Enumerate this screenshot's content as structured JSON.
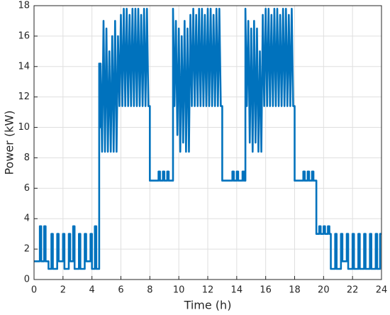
{
  "chart_data": {
    "type": "line",
    "xlabel": "Time (h)",
    "ylabel": "Power (kW)",
    "xlim": [
      0,
      24
    ],
    "ylim": [
      0,
      18
    ],
    "xticks": [
      0,
      2,
      4,
      6,
      8,
      10,
      12,
      14,
      16,
      18,
      20,
      22,
      24
    ],
    "yticks": [
      0,
      2,
      4,
      6,
      8,
      10,
      12,
      14,
      16,
      18
    ],
    "grid": true,
    "series": [
      {
        "color": "#0072bd",
        "x": [
          0,
          0.4,
          0.4,
          0.5,
          0.5,
          0.7,
          0.7,
          0.8,
          0.8,
          1.0,
          1.0,
          1.2,
          1.2,
          1.3,
          1.3,
          1.6,
          1.6,
          1.7,
          1.7,
          2.0,
          2.0,
          2.1,
          2.1,
          2.4,
          2.4,
          2.5,
          2.5,
          2.7,
          2.7,
          2.8,
          2.8,
          3.1,
          3.1,
          3.2,
          3.2,
          3.5,
          3.5,
          3.6,
          3.6,
          3.9,
          3.9,
          4.0,
          4.0,
          4.2,
          4.2,
          4.3,
          4.3,
          4.5,
          4.5,
          4.55,
          4.6,
          4.7,
          4.8,
          4.9,
          5.0,
          5.1,
          5.2,
          5.3,
          5.4,
          5.5,
          5.6,
          5.7,
          5.8,
          5.9,
          6.0,
          6.1,
          6.2,
          6.3,
          6.4,
          6.5,
          6.6,
          6.7,
          6.8,
          6.9,
          7.0,
          7.1,
          7.2,
          7.3,
          7.4,
          7.5,
          7.6,
          7.7,
          7.8,
          7.9,
          8.0,
          8.0,
          8.6,
          8.6,
          8.7,
          8.7,
          8.9,
          8.9,
          9.0,
          9.0,
          9.2,
          9.2,
          9.3,
          9.3,
          9.6,
          9.6,
          9.7,
          9.8,
          9.9,
          10.0,
          10.1,
          10.2,
          10.3,
          10.4,
          10.5,
          10.6,
          10.7,
          10.8,
          10.9,
          11.0,
          11.1,
          11.2,
          11.3,
          11.4,
          11.5,
          11.6,
          11.7,
          11.8,
          11.9,
          12.0,
          12.1,
          12.2,
          12.3,
          12.4,
          12.5,
          12.6,
          12.7,
          12.8,
          12.9,
          13.0,
          13.0,
          13.7,
          13.7,
          13.8,
          13.8,
          14.0,
          14.0,
          14.1,
          14.1,
          14.4,
          14.4,
          14.5,
          14.5,
          14.6,
          14.6,
          14.7,
          14.8,
          14.9,
          15.0,
          15.1,
          15.2,
          15.3,
          15.4,
          15.5,
          15.6,
          15.7,
          15.8,
          15.9,
          16.0,
          16.1,
          16.2,
          16.3,
          16.4,
          16.5,
          16.6,
          16.7,
          16.8,
          16.9,
          17.0,
          17.1,
          17.2,
          17.3,
          17.4,
          17.5,
          17.6,
          17.7,
          17.8,
          17.9,
          18.0,
          18.0,
          18.6,
          18.6,
          18.7,
          18.7,
          18.9,
          18.9,
          19.0,
          19.0,
          19.2,
          19.2,
          19.3,
          19.3,
          19.5,
          19.5,
          19.7,
          19.7,
          19.8,
          19.8,
          20.0,
          20.0,
          20.1,
          20.1,
          20.3,
          20.3,
          20.4,
          20.4,
          20.5,
          20.5,
          20.8,
          20.8,
          20.9,
          20.9,
          21.2,
          21.2,
          21.3,
          21.3,
          21.6,
          21.6,
          21.7,
          21.7,
          22.0,
          22.0,
          22.1,
          22.1,
          22.4,
          22.4,
          22.5,
          22.5,
          22.8,
          22.8,
          22.9,
          22.9,
          23.2,
          23.2,
          23.3,
          23.3,
          23.6,
          23.6,
          23.7,
          23.7,
          23.9,
          23.9,
          24
        ],
        "values": [
          1.2,
          1.2,
          3.5,
          3.5,
          1.2,
          1.2,
          3.5,
          3.5,
          1.2,
          1.2,
          0.7,
          0.7,
          3.0,
          3.0,
          0.7,
          0.7,
          3.0,
          3.0,
          1.2,
          1.2,
          3.0,
          3.0,
          0.7,
          0.7,
          3.0,
          3.0,
          1.2,
          1.2,
          3.5,
          3.5,
          0.7,
          0.7,
          3.0,
          3.0,
          0.7,
          0.7,
          3.0,
          3.0,
          1.2,
          1.2,
          3.0,
          3.0,
          0.7,
          0.7,
          3.5,
          3.5,
          0.7,
          0.7,
          14.2,
          10,
          14.2,
          8.4,
          17,
          8.4,
          16.5,
          8.4,
          15,
          8.4,
          16,
          8.4,
          17,
          8.4,
          16,
          11.4,
          17.4,
          11.4,
          17.8,
          11.4,
          17.8,
          11.4,
          17.4,
          11.4,
          17.8,
          11.4,
          17.8,
          11.4,
          17.8,
          11.4,
          17.4,
          11.4,
          17.8,
          11.4,
          17.8,
          11.4,
          11.4,
          6.5,
          6.5,
          7.1,
          7.1,
          6.5,
          6.5,
          7.1,
          7.1,
          6.5,
          6.5,
          7.1,
          7.1,
          6.5,
          6.5,
          17.8,
          11.4,
          17,
          9.5,
          16.5,
          8.4,
          16,
          9,
          17,
          8.4,
          16.5,
          8.4,
          17.4,
          11.4,
          17.8,
          11.4,
          17.4,
          11.4,
          17.8,
          11.4,
          17.8,
          11.4,
          17.4,
          11.4,
          17.8,
          11.4,
          17.8,
          11.4,
          17.4,
          11.4,
          17.8,
          11.4,
          17.8,
          11.4,
          11.4,
          6.5,
          6.5,
          7.1,
          7.1,
          6.5,
          6.5,
          7.1,
          7.1,
          6.5,
          6.5,
          7.1,
          7.1,
          6.5,
          6.5,
          17.8,
          11.4,
          17,
          9,
          16.5,
          8.4,
          17,
          9,
          16.5,
          8.4,
          15,
          8.4,
          17.4,
          11.4,
          17.8,
          11.4,
          17.8,
          11.4,
          17.4,
          11.4,
          17.8,
          11.4,
          17.8,
          11.4,
          17.4,
          11.4,
          17.8,
          11.4,
          17.8,
          11.4,
          17.4,
          11.4,
          17.8,
          11.4,
          11.4,
          6.5,
          6.5,
          7.1,
          7.1,
          6.5,
          6.5,
          7.1,
          7.1,
          6.5,
          6.5,
          7.1,
          7.1,
          6.5,
          6.5,
          3.0,
          3.0,
          3.5,
          3.5,
          3.0,
          3.0,
          3.5,
          3.5,
          3.0,
          3.0,
          3.5,
          3.5,
          3.0,
          3.0,
          0.7,
          0.7,
          3.0,
          3.0,
          0.7,
          0.7,
          3.0,
          3.0,
          1.2,
          1.2,
          3.0,
          3.0,
          0.7,
          0.7,
          3.0,
          3.0,
          0.7,
          0.7,
          3.0,
          3.0,
          0.7,
          0.7,
          3.0,
          3.0,
          0.7,
          0.7,
          3.0,
          3.0,
          0.7,
          0.7,
          3.0,
          3.0,
          0.7,
          0.7,
          3.0,
          3.0
        ]
      }
    ]
  }
}
